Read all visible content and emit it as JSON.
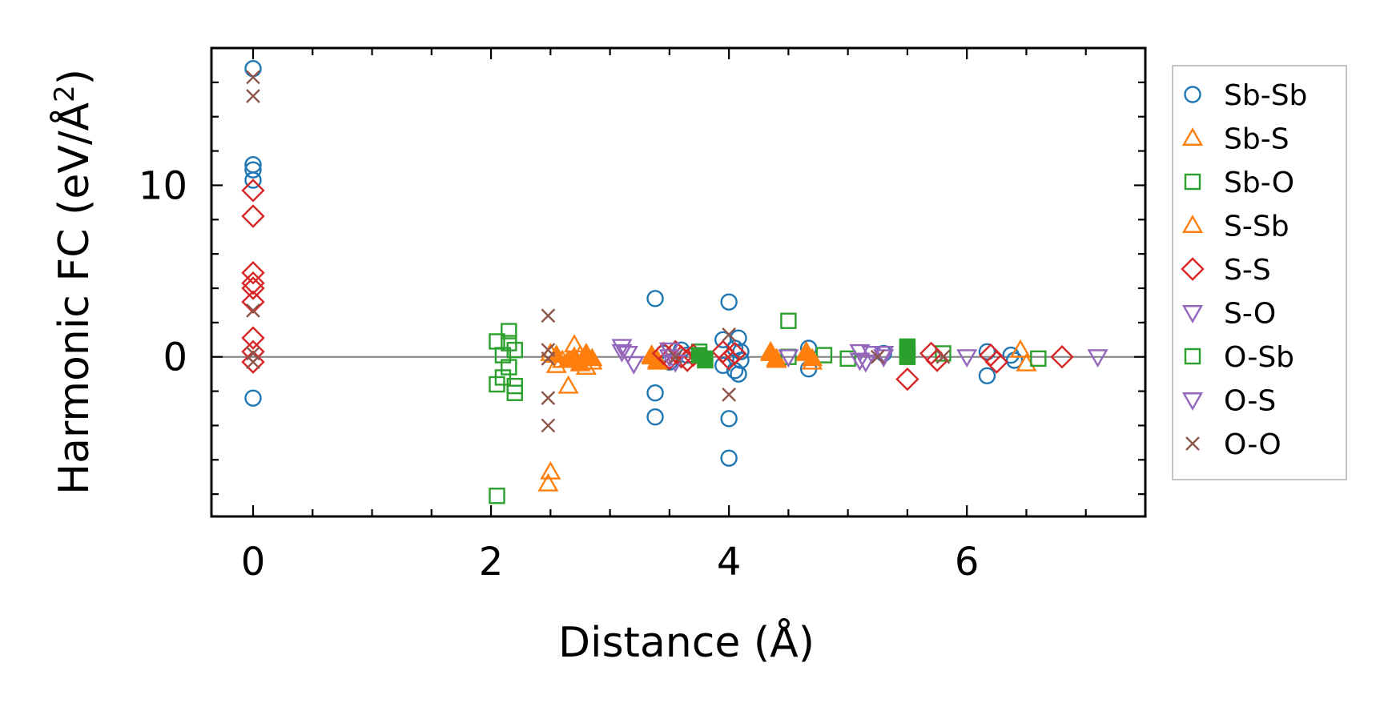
{
  "chart_data": {
    "type": "scatter",
    "title": "",
    "xlabel": "Distance (Å)",
    "ylabel": "Harmonic FC (eV/Å²)",
    "xlim": [
      -0.35,
      7.5
    ],
    "ylim": [
      -9.3,
      18
    ],
    "xticks": [
      0,
      2,
      4,
      6
    ],
    "yticks": [
      0,
      10
    ],
    "xtick_labels": [
      "0",
      "2",
      "4",
      "6"
    ],
    "ytick_labels": [
      "0",
      "10"
    ],
    "zero_line": true,
    "legend_position": "right-outside",
    "series": [
      {
        "name": "Sb-Sb",
        "marker": "circle",
        "color": "#1f77b4",
        "x": [
          0,
          0,
          0,
          0,
          0,
          3.38,
          3.38,
          3.38,
          3.45,
          3.5,
          3.6,
          3.65,
          3.95,
          3.95,
          4.0,
          4.0,
          4.0,
          4.05,
          4.05,
          4.08,
          4.08,
          4.1,
          4.1,
          4.67,
          4.67,
          5.3,
          6.17,
          6.17,
          6.37,
          6.4
        ],
        "y": [
          16.8,
          11.2,
          10.9,
          10.3,
          -2.4,
          3.4,
          -2.1,
          -3.5,
          0.2,
          -0.3,
          0.4,
          0.1,
          1.0,
          -0.5,
          3.2,
          -3.6,
          -5.9,
          0.5,
          -0.8,
          1.1,
          -1.0,
          0.3,
          -0.2,
          0.5,
          -0.7,
          0.2,
          0.3,
          -1.1,
          0.1,
          -0.2
        ]
      },
      {
        "name": "Sb-S",
        "marker": "triangle-up",
        "color": "#ff7f0e",
        "x": [
          2.48,
          2.5,
          2.5,
          2.55,
          2.6,
          2.65,
          2.7,
          2.75,
          2.8,
          2.85,
          3.35,
          3.4,
          4.35,
          4.4,
          4.65,
          4.7,
          6.45,
          6.5
        ],
        "y": [
          -7.4,
          -6.7,
          0.2,
          -0.5,
          -0.2,
          -1.7,
          0.7,
          0.1,
          -0.6,
          -0.3,
          0.0,
          -0.2,
          0.3,
          -0.1,
          0.2,
          -0.3,
          0.4,
          -0.4
        ]
      },
      {
        "name": "Sb-O",
        "marker": "square",
        "color": "#2ca02c",
        "x": [
          2.05,
          2.05,
          2.05,
          2.1,
          2.1,
          2.15,
          2.15,
          2.15,
          2.2,
          2.2,
          2.2,
          3.75,
          3.8,
          4.5,
          4.5,
          4.8,
          5.0,
          5.5,
          5.5,
          5.8,
          6.6
        ],
        "y": [
          -8.1,
          0.9,
          -1.6,
          0.1,
          -1.2,
          1.5,
          0.8,
          -0.6,
          0.4,
          -1.7,
          -2.1,
          0.3,
          -0.2,
          2.1,
          0.0,
          0.1,
          -0.1,
          0.5,
          0.0,
          0.2,
          -0.1
        ]
      },
      {
        "name": "S-Sb",
        "marker": "triangle-up-filled",
        "color": "#ff7f0e",
        "x": [
          2.55,
          2.65,
          2.7,
          2.75,
          2.8,
          2.85,
          3.35,
          3.4,
          4.35,
          4.4,
          4.65,
          4.7
        ],
        "y": [
          0.1,
          -0.2,
          0.0,
          -0.4,
          0.2,
          -0.1,
          0.1,
          -0.3,
          0.2,
          -0.2,
          0.3,
          -0.1
        ]
      },
      {
        "name": "S-S",
        "marker": "diamond",
        "color": "#d62728",
        "x": [
          0,
          0,
          0,
          0,
          0,
          0,
          0,
          0,
          0,
          3.45,
          3.5,
          3.55,
          3.6,
          3.65,
          3.7,
          3.95,
          4.0,
          4.05,
          5.5,
          5.7,
          5.75,
          6.2,
          6.25,
          6.8
        ],
        "y": [
          9.7,
          8.2,
          4.9,
          4.3,
          3.2,
          1.1,
          0.3,
          -0.3,
          4.0,
          0.2,
          -0.1,
          0.3,
          0.0,
          -0.2,
          0.1,
          0.3,
          -0.1,
          0.2,
          -1.3,
          0.2,
          -0.2,
          0.1,
          -0.3,
          0.0
        ]
      },
      {
        "name": "S-O",
        "marker": "triangle-down",
        "color": "#9467bd",
        "x": [
          3.1,
          3.15,
          3.2,
          3.5,
          3.55,
          4.5,
          5.1,
          5.15,
          5.2,
          5.3,
          6.0,
          7.1
        ],
        "y": [
          0.6,
          0.2,
          -0.4,
          0.4,
          -0.3,
          0.0,
          0.3,
          -0.3,
          0.2,
          0.0,
          0.0,
          0.0
        ]
      },
      {
        "name": "O-Sb",
        "marker": "square-filled",
        "color": "#2ca02c",
        "x": [
          3.75,
          3.8,
          5.5,
          5.5
        ],
        "y": [
          0.1,
          -0.1,
          0.6,
          0.1
        ]
      },
      {
        "name": "O-S",
        "marker": "triangle-down",
        "color": "#9467bd",
        "x": [
          3.1,
          3.5,
          5.1,
          5.3
        ],
        "y": [
          0.3,
          0.0,
          -0.2,
          0.2
        ]
      },
      {
        "name": "O-O",
        "marker": "x",
        "color": "#8c564b",
        "x": [
          0,
          0,
          0,
          0,
          0,
          2.48,
          2.48,
          2.48,
          2.48,
          2.48,
          3.55,
          4.0,
          4.0,
          5.25,
          5.8
        ],
        "y": [
          16.3,
          15.2,
          2.7,
          -0.3,
          0.2,
          2.4,
          0.4,
          -0.1,
          -2.4,
          -4.0,
          0.0,
          1.3,
          -2.2,
          0.0,
          0.0
        ]
      }
    ]
  }
}
